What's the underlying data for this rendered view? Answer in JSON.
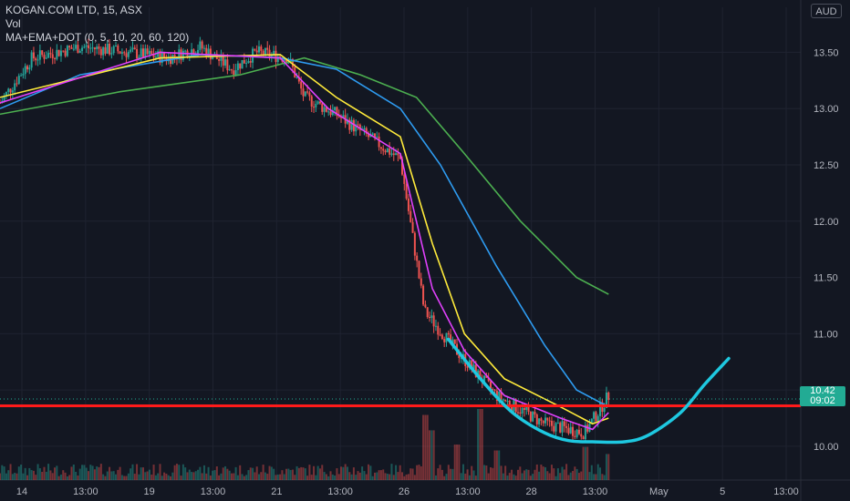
{
  "legend": {
    "symbol_line": "KOGAN.COM LTD, 15, ASX",
    "volume_label": "Vol",
    "indicator_line": "MA+EMA+DOT (0, 5, 10, 20, 60, 120)"
  },
  "currency_badge": "AUD",
  "current_price": {
    "price": "10.42",
    "countdown": "09:02"
  },
  "colors": {
    "background": "#131722",
    "grid": "#1f2330",
    "up_candle": "#26a69a",
    "down_candle": "#ef5350",
    "support_line": "#ff1a1a",
    "cup_curve": "#1ec8e0",
    "ma_blue": "#2e9bf0",
    "ma_green": "#4caf50",
    "ma_yellow": "#ffeb3b",
    "ma_pink": "#e040fb",
    "ma_red": "#ff3d3d",
    "price_tag": "#22ab94"
  },
  "chart_data": {
    "type": "candlestick",
    "y_axis": {
      "range": [
        9.7,
        13.9
      ],
      "ticks": [
        "13.50",
        "13.00",
        "12.50",
        "12.00",
        "11.50",
        "11.00",
        "10.50",
        "10.00"
      ],
      "tick_values": [
        13.5,
        13.0,
        12.5,
        12.0,
        11.5,
        11.0,
        10.5,
        10.0
      ]
    },
    "x_axis": {
      "tick_labels": [
        "14",
        "13:00",
        "19",
        "13:00",
        "21",
        "13:00",
        "26",
        "13:00",
        "28",
        "13:00",
        "May",
        "5",
        "13:00"
      ]
    },
    "horizontal_support_level": 10.36,
    "close_path": [
      {
        "pos": 0.0,
        "value": 13.05
      },
      {
        "pos": 0.04,
        "value": 13.45
      },
      {
        "pos": 0.1,
        "value": 13.55
      },
      {
        "pos": 0.16,
        "value": 13.5
      },
      {
        "pos": 0.21,
        "value": 13.45
      },
      {
        "pos": 0.25,
        "value": 13.55
      },
      {
        "pos": 0.29,
        "value": 13.35
      },
      {
        "pos": 0.32,
        "value": 13.5
      },
      {
        "pos": 0.36,
        "value": 13.45
      },
      {
        "pos": 0.38,
        "value": 13.1
      },
      {
        "pos": 0.42,
        "value": 12.95
      },
      {
        "pos": 0.46,
        "value": 12.75
      },
      {
        "pos": 0.5,
        "value": 12.55
      },
      {
        "pos": 0.53,
        "value": 11.2
      },
      {
        "pos": 0.57,
        "value": 10.85
      },
      {
        "pos": 0.62,
        "value": 10.45
      },
      {
        "pos": 0.68,
        "value": 10.2
      },
      {
        "pos": 0.73,
        "value": 10.12
      },
      {
        "pos": 0.76,
        "value": 10.45
      }
    ],
    "moving_averages": [
      {
        "color": "#4caf50",
        "points": [
          [
            0.0,
            12.95
          ],
          [
            0.15,
            13.15
          ],
          [
            0.3,
            13.3
          ],
          [
            0.38,
            13.45
          ],
          [
            0.45,
            13.3
          ],
          [
            0.52,
            13.1
          ],
          [
            0.58,
            12.6
          ],
          [
            0.65,
            12.0
          ],
          [
            0.72,
            11.5
          ],
          [
            0.76,
            11.35
          ]
        ]
      },
      {
        "color": "#2e9bf0",
        "points": [
          [
            0.0,
            13.0
          ],
          [
            0.1,
            13.3
          ],
          [
            0.25,
            13.48
          ],
          [
            0.35,
            13.45
          ],
          [
            0.42,
            13.35
          ],
          [
            0.5,
            13.0
          ],
          [
            0.55,
            12.5
          ],
          [
            0.62,
            11.6
          ],
          [
            0.68,
            10.9
          ],
          [
            0.72,
            10.5
          ],
          [
            0.76,
            10.35
          ]
        ]
      },
      {
        "color": "#ffeb3b",
        "points": [
          [
            0.0,
            13.1
          ],
          [
            0.2,
            13.45
          ],
          [
            0.35,
            13.48
          ],
          [
            0.42,
            13.1
          ],
          [
            0.5,
            12.75
          ],
          [
            0.54,
            11.8
          ],
          [
            0.58,
            11.0
          ],
          [
            0.63,
            10.6
          ],
          [
            0.7,
            10.35
          ],
          [
            0.74,
            10.2
          ],
          [
            0.76,
            10.25
          ]
        ]
      },
      {
        "color": "#e040fb",
        "points": [
          [
            0.0,
            13.05
          ],
          [
            0.2,
            13.5
          ],
          [
            0.35,
            13.45
          ],
          [
            0.41,
            13.0
          ],
          [
            0.5,
            12.6
          ],
          [
            0.54,
            11.4
          ],
          [
            0.58,
            10.85
          ],
          [
            0.63,
            10.45
          ],
          [
            0.7,
            10.25
          ],
          [
            0.74,
            10.15
          ],
          [
            0.76,
            10.3
          ]
        ]
      }
    ],
    "cup_curve": [
      [
        0.56,
        10.95
      ],
      [
        0.6,
        10.6
      ],
      [
        0.64,
        10.3
      ],
      [
        0.68,
        10.12
      ],
      [
        0.71,
        10.05
      ],
      [
        0.74,
        10.04
      ],
      [
        0.78,
        10.04
      ],
      [
        0.81,
        10.1
      ],
      [
        0.85,
        10.3
      ],
      [
        0.88,
        10.55
      ],
      [
        0.91,
        10.78
      ]
    ],
    "volume_spikes": [
      [
        0.53,
        0.55
      ],
      [
        0.54,
        0.42
      ],
      [
        0.57,
        0.3
      ],
      [
        0.6,
        0.6
      ],
      [
        0.62,
        0.25
      ],
      [
        0.73,
        0.28
      ],
      [
        0.76,
        0.22
      ]
    ]
  }
}
